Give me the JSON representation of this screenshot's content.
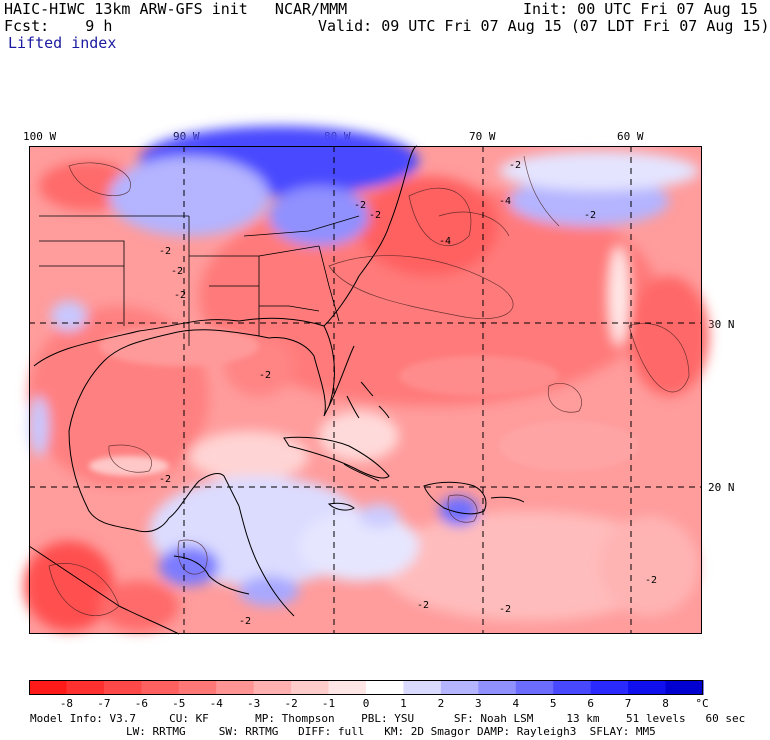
{
  "header": {
    "model_title": "HAIC-HIWC 13km ARW-GFS init   NCAR/MMM",
    "init_time": "Init: 00 UTC Fri 07 Aug 15",
    "forecast": "Fcst:    9 h",
    "valid_time": "Valid: 09 UTC Fri 07 Aug 15 (07 LDT Fri 07 Aug 15)",
    "field_name": "Lifted index"
  },
  "map": {
    "longitude_labels": [
      "100 W",
      "90 W",
      "80 W",
      "70 W",
      "60 W"
    ],
    "latitude_labels": [
      "30 N",
      "20 N"
    ],
    "contour_labels": [
      "-2",
      "-2",
      "-4",
      "-2",
      "-2",
      "-4",
      "-2",
      "-2",
      "-2",
      "-2",
      "-2",
      "-2",
      "-2",
      "-2",
      "-2"
    ]
  },
  "colorbar": {
    "labels": [
      "-8",
      "-7",
      "-6",
      "-5",
      "-4",
      "-3",
      "-2",
      "-1",
      "0",
      "1",
      "2",
      "3",
      "4",
      "5",
      "6",
      "7",
      "8"
    ],
    "unit": "°C",
    "colors": [
      "#ff1a1a",
      "#ff3030",
      "#ff4848",
      "#ff6060",
      "#ff7878",
      "#ff9494",
      "#ffb0b0",
      "#ffcccc",
      "#ffe6e6",
      "#ffffff",
      "#dadaff",
      "#b4b4ff",
      "#9090ff",
      "#6c6cff",
      "#4848ff",
      "#2a2aff",
      "#1010ee",
      "#0000d0"
    ]
  },
  "model_info": {
    "line1": "Model Info: V3.7     CU: KF       MP: Thompson    PBL: YSU      SF: Noah LSM     13 km    51 levels   60 sec",
    "line2": "LW: RRTMG     SW: RRTMG   DIFF: full   KM: 2D Smagor DAMP: Rayleigh3  SFLAY: MM5"
  }
}
